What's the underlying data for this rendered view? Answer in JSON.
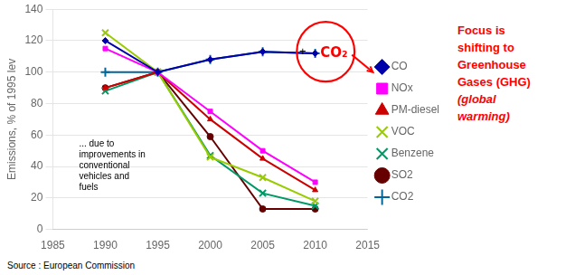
{
  "chart_data": {
    "type": "line",
    "x": [
      1990,
      1995,
      2000,
      2005,
      2010
    ],
    "series": [
      {
        "name": "CO",
        "color": "#0000AA",
        "marker": "diamond",
        "values": [
          120,
          100,
          108,
          113,
          112
        ]
      },
      {
        "name": "NOx",
        "color": "#FF00FF",
        "marker": "square",
        "values": [
          115,
          100,
          75,
          50,
          30
        ]
      },
      {
        "name": "PM-diesel",
        "color": "#CC0000",
        "marker": "triangle",
        "values": [
          90,
          100,
          70,
          45,
          25
        ]
      },
      {
        "name": "VOC",
        "color": "#99CC00",
        "marker": "x",
        "values": [
          125,
          100,
          46,
          33,
          18
        ]
      },
      {
        "name": "Benzene",
        "color": "#009966",
        "marker": "x",
        "values": [
          88,
          100,
          47,
          23,
          15
        ]
      },
      {
        "name": "SO2",
        "color": "#660000",
        "marker": "circle",
        "values": [
          90,
          100,
          59,
          13,
          13
        ]
      },
      {
        "name": "CO2",
        "color": "#006699",
        "marker": "plus",
        "values": [
          100,
          100,
          108,
          113,
          112
        ]
      }
    ],
    "xlim": [
      1985,
      2015
    ],
    "ylim": [
      0,
      140
    ],
    "xticks": [
      1985,
      1990,
      1995,
      2000,
      2005,
      2010,
      2015
    ],
    "yticks": [
      0,
      20,
      40,
      60,
      80,
      100,
      120,
      140
    ],
    "ylabel": "Emissions, % of 1995 lev",
    "grid": "y",
    "legend": "right",
    "annotations": [
      "... due to\nimprovements in\nconventional\nvehicles and\nfuels",
      "+",
      "CO₂"
    ],
    "side_text": [
      "Focus is",
      "shifting to",
      "Greenhouse",
      "Gases (GHG)",
      "(global",
      "warming)"
    ],
    "source": "Source : European Commission"
  }
}
